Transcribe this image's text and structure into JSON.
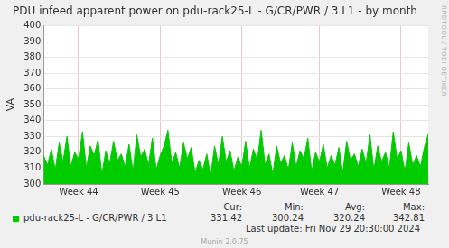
{
  "chart_data": {
    "type": "area",
    "title": "PDU infeed apparent power on pdu-rack25-L - G/CR/PWR / 3 L1 - by month",
    "y_label": "VA",
    "categories": [
      null,
      null,
      null,
      null,
      null,
      null,
      null,
      null,
      null,
      "Week 44",
      null,
      null,
      null,
      null,
      null,
      null,
      null,
      null,
      null,
      null,
      null,
      null,
      null,
      null,
      null,
      null,
      null,
      null,
      null,
      null,
      "Week 45",
      null,
      null,
      null,
      null,
      null,
      null,
      null,
      null,
      null,
      null,
      null,
      null,
      null,
      null,
      null,
      null,
      null,
      null,
      null,
      null,
      "Week 46",
      null,
      null,
      null,
      null,
      null,
      null,
      null,
      null,
      null,
      null,
      null,
      null,
      null,
      null,
      null,
      null,
      null,
      null,
      null,
      "Week 47",
      null,
      null,
      null,
      null,
      null,
      null,
      null,
      null,
      null,
      null,
      null,
      null,
      null,
      null,
      null,
      null,
      null,
      null,
      null,
      null,
      "Week 48",
      null,
      null,
      null,
      null,
      null,
      null,
      null
    ],
    "series": [
      {
        "name": "pdu-rack25-L - G/CR/PWR / 3 L1",
        "color": "#00cc00",
        "values": [
          318,
          312,
          322,
          309,
          326,
          314,
          330,
          311,
          320,
          316,
          333,
          310,
          324,
          318,
          328,
          306,
          321,
          313,
          327,
          315,
          319,
          311,
          325,
          308,
          331,
          317,
          322,
          312,
          329,
          309,
          318,
          324,
          334,
          313,
          320,
          310,
          326,
          316,
          323,
          307,
          315,
          309,
          319,
          305,
          324,
          312,
          330,
          314,
          321,
          308,
          317,
          311,
          327,
          310,
          322,
          315,
          334,
          312,
          319,
          306,
          324,
          313,
          318,
          309,
          326,
          311,
          321,
          316,
          329,
          308,
          320,
          314,
          325,
          310,
          318,
          312,
          323,
          307,
          327,
          315,
          319,
          311,
          322,
          313,
          331,
          309,
          324,
          314,
          320,
          310,
          333,
          316,
          321,
          308,
          326,
          312,
          318,
          311,
          323,
          331.42
        ]
      }
    ],
    "stats": {
      "labels": [
        "Cur:",
        "Min:",
        "Avg:",
        "Max:"
      ],
      "values": [
        331.42,
        300.24,
        320.24,
        342.81
      ]
    },
    "last_update": "Last update: Fri Nov 29 20:30:00 2024",
    "footer": "Munin 2.0.75",
    "watermark": "RRDTOOL / TOBI OETIKER",
    "ylim": [
      300,
      400
    ],
    "yticks": [
      300,
      310,
      320,
      330,
      340,
      350,
      360,
      370,
      380,
      390,
      400
    ],
    "grid": true,
    "legend": "bottom"
  }
}
